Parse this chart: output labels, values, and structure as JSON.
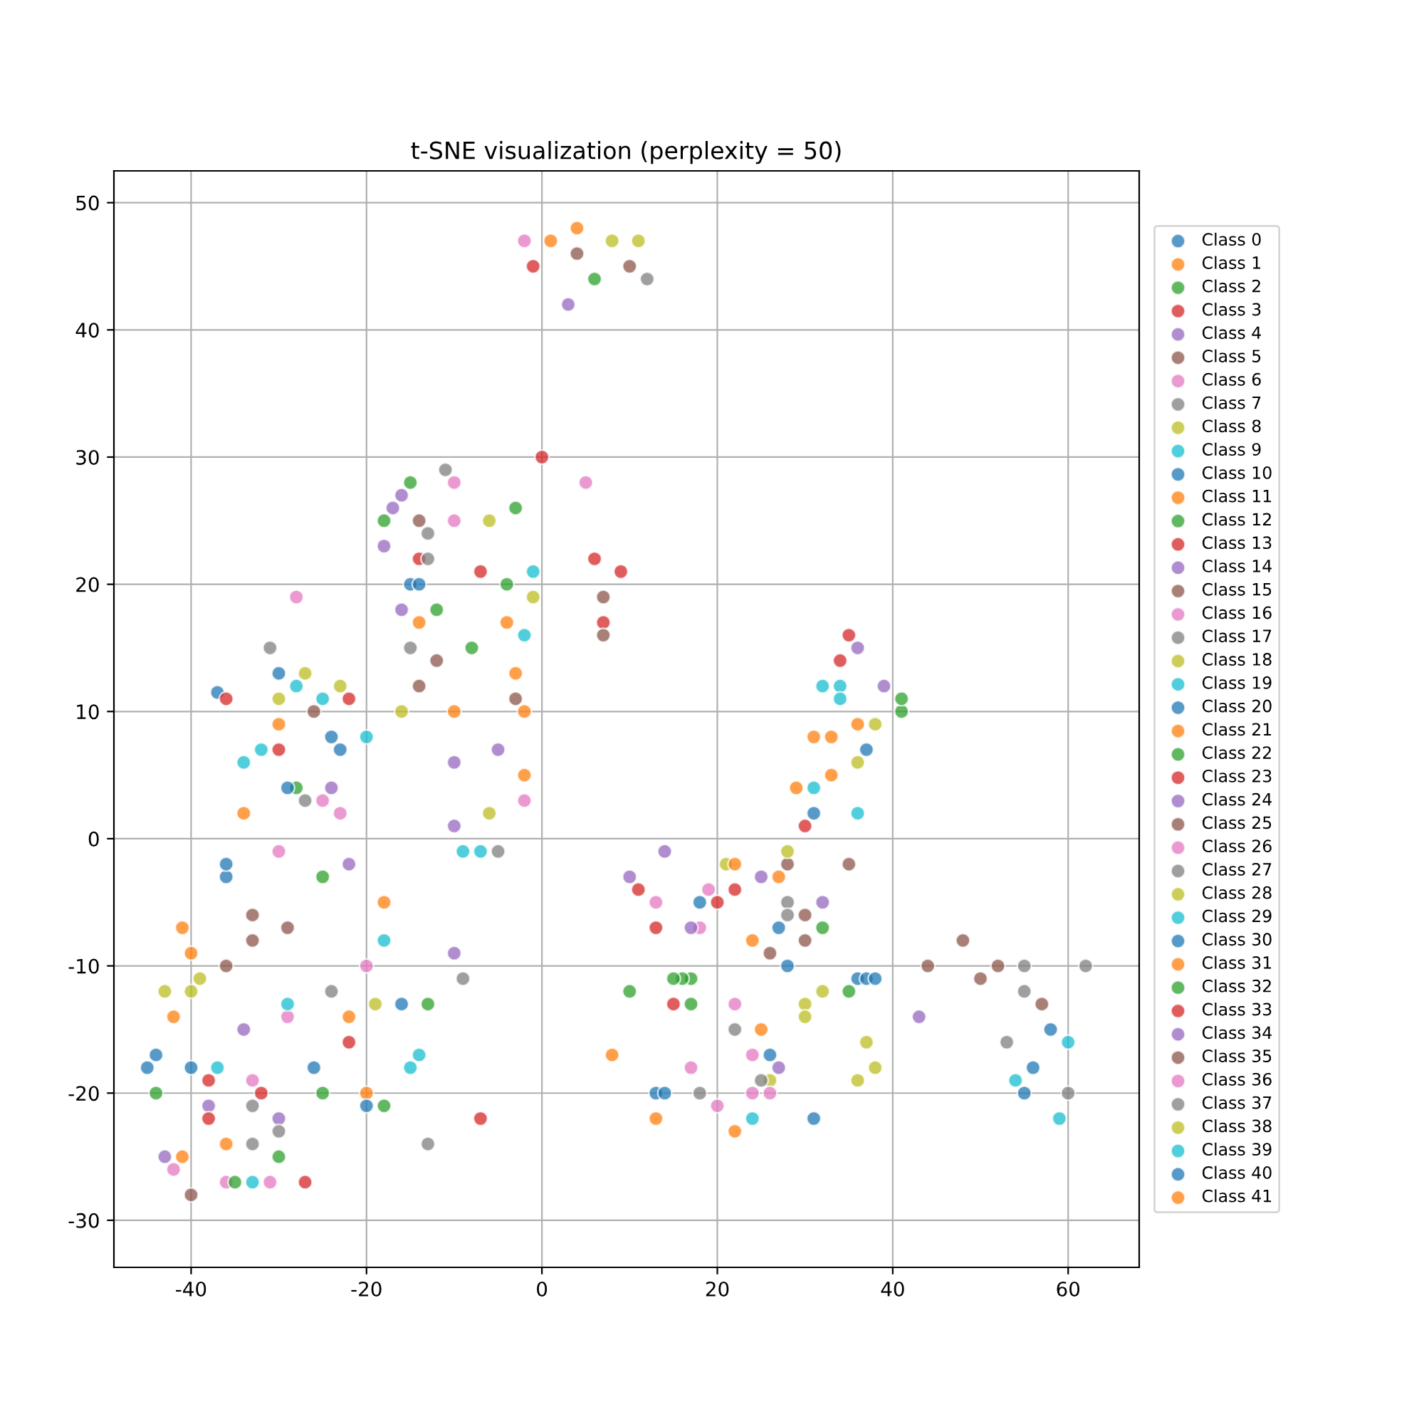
{
  "chart_data": {
    "type": "scatter",
    "title": "t-SNE visualization (perplexity = 50)",
    "xlim": [
      -48.8,
      68.1
    ],
    "ylim": [
      -33.7,
      52.5
    ],
    "xticks": [
      -40,
      -20,
      0,
      20,
      40,
      60
    ],
    "yticks": [
      -30,
      -20,
      -10,
      0,
      10,
      20,
      30,
      40,
      50
    ],
    "grid": true,
    "legend": "right",
    "marker": "circle",
    "series": [
      {
        "name": "Class 0",
        "color": "#1f77b4",
        "x": [
          -37,
          -30,
          -44,
          36,
          28,
          13
        ],
        "values": [
          11.5,
          13,
          -17,
          -11,
          -10,
          -20
        ]
      },
      {
        "name": "Class 1",
        "color": "#ff7f0e",
        "x": [
          1,
          -40,
          -14,
          -2,
          31,
          22
        ],
        "values": [
          47,
          -9,
          17,
          5,
          8,
          -23
        ]
      },
      {
        "name": "Class 2",
        "color": "#2ca02c",
        "x": [
          6,
          -15,
          -4,
          -28,
          17,
          35
        ],
        "values": [
          44,
          28,
          20,
          4,
          -11,
          -12
        ]
      },
      {
        "name": "Class 3",
        "color": "#d62728",
        "x": [
          -1,
          7,
          -14,
          -36,
          20,
          35
        ],
        "values": [
          45,
          17,
          22,
          11,
          -5,
          16
        ]
      },
      {
        "name": "Class 4",
        "color": "#9467bd",
        "x": [
          3,
          -17,
          -10,
          -30,
          27,
          -43
        ],
        "values": [
          42,
          26,
          6,
          -22,
          -18,
          -25
        ]
      },
      {
        "name": "Class 5",
        "color": "#8c564b",
        "x": [
          10,
          7,
          -12,
          -33,
          30,
          52
        ],
        "values": [
          45,
          19,
          14,
          -6,
          -8,
          -10
        ]
      },
      {
        "name": "Class 6",
        "color": "#e377c2",
        "x": [
          -2,
          -25,
          -10,
          13,
          22,
          -36
        ],
        "values": [
          47,
          3,
          25,
          -5,
          -13,
          -27
        ]
      },
      {
        "name": "Class 7",
        "color": "#7f7f7f",
        "x": [
          12,
          -13,
          -24,
          -33,
          18,
          55
        ],
        "values": [
          44,
          24,
          -12,
          -24,
          -20,
          -12
        ]
      },
      {
        "name": "Class 8",
        "color": "#bcbd22",
        "x": [
          8,
          -6,
          -30,
          30,
          26,
          38
        ],
        "values": [
          47,
          25,
          11,
          -13,
          -19,
          9
        ]
      },
      {
        "name": "Class 9",
        "color": "#17becf",
        "x": [
          -1,
          -34,
          -20,
          -15,
          32,
          60
        ],
        "values": [
          21,
          6,
          8,
          -18,
          12,
          -16
        ]
      },
      {
        "name": "Class 10",
        "color": "#1f77b4",
        "x": [
          -36,
          -24,
          -40,
          37,
          14,
          31
        ],
        "values": [
          -3,
          8,
          -18,
          -11,
          -20,
          2
        ]
      },
      {
        "name": "Class 11",
        "color": "#ff7f0e",
        "x": [
          4,
          -10,
          -18,
          -42,
          24,
          33
        ],
        "values": [
          48,
          10,
          -5,
          -14,
          -8,
          5
        ]
      },
      {
        "name": "Class 12",
        "color": "#2ca02c",
        "x": [
          -18,
          -8,
          -30,
          -25,
          16,
          32
        ],
        "values": [
          25,
          15,
          -25,
          -20,
          -11,
          -7
        ]
      },
      {
        "name": "Class 13",
        "color": "#d62728",
        "x": [
          0,
          6,
          -30,
          -22,
          -38,
          11
        ],
        "values": [
          30,
          22,
          7,
          -16,
          -19,
          -4
        ]
      },
      {
        "name": "Class 14",
        "color": "#9467bd",
        "x": [
          -16,
          -5,
          -24,
          -10,
          32,
          36
        ],
        "values": [
          18,
          7,
          4,
          -9,
          -5,
          15
        ]
      },
      {
        "name": "Class 15",
        "color": "#8c564b",
        "x": [
          4,
          -14,
          -26,
          -33,
          35,
          26
        ],
        "values": [
          46,
          12,
          10,
          -8,
          -2,
          -9
        ]
      },
      {
        "name": "Class 16",
        "color": "#e377c2",
        "x": [
          5,
          -10,
          -30,
          19,
          24,
          -33
        ],
        "values": [
          28,
          28,
          -1,
          -4,
          -17,
          -19
        ]
      },
      {
        "name": "Class 17",
        "color": "#7f7f7f",
        "x": [
          -15,
          -27,
          -31,
          -9,
          22,
          28
        ],
        "values": [
          15,
          3,
          15,
          -11,
          -15,
          -5
        ]
      },
      {
        "name": "Class 18",
        "color": "#bcbd22",
        "x": [
          11,
          -27,
          -16,
          -40,
          36,
          30
        ],
        "values": [
          47,
          13,
          10,
          -12,
          -19,
          -14
        ]
      },
      {
        "name": "Class 19",
        "color": "#17becf",
        "x": [
          -32,
          -28,
          -7,
          -18,
          34,
          -33
        ],
        "values": [
          7,
          12,
          -1,
          -8,
          12,
          -27
        ]
      },
      {
        "name": "Class 20",
        "color": "#1f77b4",
        "x": [
          -23,
          -15,
          -26,
          31,
          37,
          56
        ],
        "values": [
          7,
          20,
          -18,
          -22,
          7,
          -18
        ]
      },
      {
        "name": "Class 21",
        "color": "#ff7f0e",
        "x": [
          -3,
          -34,
          -20,
          8,
          29,
          -36
        ],
        "values": [
          13,
          2,
          -20,
          -17,
          4,
          -24
        ]
      },
      {
        "name": "Class 22",
        "color": "#2ca02c",
        "x": [
          -3,
          -25,
          -44,
          15,
          41,
          -13
        ],
        "values": [
          26,
          -3,
          -20,
          -11,
          10,
          -13
        ]
      },
      {
        "name": "Class 23",
        "color": "#d62728",
        "x": [
          9,
          -22,
          -32,
          -7,
          15,
          34
        ],
        "values": [
          21,
          11,
          -20,
          -22,
          -13,
          14
        ]
      },
      {
        "name": "Class 24",
        "color": "#9467bd",
        "x": [
          -18,
          -10,
          -38,
          14,
          25,
          39
        ],
        "values": [
          23,
          1,
          -21,
          -1,
          -3,
          12
        ]
      },
      {
        "name": "Class 25",
        "color": "#8c564b",
        "x": [
          7,
          -29,
          -36,
          30,
          44,
          50
        ],
        "values": [
          16,
          -7,
          -10,
          -6,
          -10,
          -11
        ]
      },
      {
        "name": "Class 26",
        "color": "#e377c2",
        "x": [
          -2,
          -23,
          -29,
          18,
          26,
          -42
        ],
        "values": [
          3,
          2,
          -14,
          -7,
          -20,
          -26
        ]
      },
      {
        "name": "Class 27",
        "color": "#7f7f7f",
        "x": [
          -11,
          -33,
          -13,
          28,
          55,
          60
        ],
        "values": [
          29,
          -21,
          -24,
          -6,
          -10,
          -20
        ]
      },
      {
        "name": "Class 28",
        "color": "#bcbd22",
        "x": [
          -6,
          -23,
          -39,
          38,
          32,
          21
        ],
        "values": [
          2,
          12,
          -11,
          -18,
          -12,
          -2
        ]
      },
      {
        "name": "Class 29",
        "color": "#17becf",
        "x": [
          -2,
          -25,
          -37,
          31,
          36,
          54
        ],
        "values": [
          16,
          11,
          -18,
          4,
          2,
          -19
        ]
      },
      {
        "name": "Class 30",
        "color": "#1f77b4",
        "x": [
          -29,
          -36,
          -16,
          38,
          26,
          58
        ],
        "values": [
          4,
          -2,
          -13,
          -11,
          -17,
          -15
        ]
      },
      {
        "name": "Class 31",
        "color": "#ff7f0e",
        "x": [
          -4,
          -22,
          -41,
          25,
          13,
          36
        ],
        "values": [
          17,
          -14,
          -7,
          -15,
          -22,
          9
        ]
      },
      {
        "name": "Class 32",
        "color": "#2ca02c",
        "x": [
          -12,
          -35,
          -18,
          10,
          17,
          41
        ],
        "values": [
          18,
          -27,
          -21,
          -12,
          -13,
          11
        ]
      },
      {
        "name": "Class 33",
        "color": "#d62728",
        "x": [
          -7,
          -27,
          -38,
          13,
          22,
          30
        ],
        "values": [
          21,
          -27,
          -22,
          -7,
          -4,
          1
        ]
      },
      {
        "name": "Class 34",
        "color": "#9467bd",
        "x": [
          -16,
          -22,
          -34,
          10,
          17,
          43
        ],
        "values": [
          27,
          -2,
          -15,
          -3,
          -7,
          -14
        ]
      },
      {
        "name": "Class 35",
        "color": "#8c564b",
        "x": [
          -14,
          -3,
          -40,
          28,
          48,
          57
        ],
        "values": [
          25,
          11,
          -28,
          -2,
          -8,
          -13
        ]
      },
      {
        "name": "Class 36",
        "color": "#e377c2",
        "x": [
          -28,
          -20,
          -31,
          20,
          24,
          17
        ],
        "values": [
          19,
          -10,
          -27,
          -21,
          -20,
          -18
        ]
      },
      {
        "name": "Class 37",
        "color": "#7f7f7f",
        "x": [
          -13,
          -5,
          -30,
          25,
          53,
          62
        ],
        "values": [
          22,
          -1,
          -23,
          -19,
          -16,
          -10
        ]
      },
      {
        "name": "Class 38",
        "color": "#bcbd22",
        "x": [
          -1,
          -19,
          -43,
          36,
          28,
          37
        ],
        "values": [
          19,
          -13,
          -12,
          6,
          -1,
          -16
        ]
      },
      {
        "name": "Class 39",
        "color": "#17becf",
        "x": [
          -9,
          -29,
          -14,
          24,
          34,
          59
        ],
        "values": [
          -1,
          -13,
          -17,
          -22,
          11,
          -22
        ]
      },
      {
        "name": "Class 40",
        "color": "#1f77b4",
        "x": [
          -14,
          -20,
          -45,
          27,
          18,
          55
        ],
        "values": [
          20,
          -21,
          -18,
          -7,
          -5,
          -20
        ]
      },
      {
        "name": "Class 41",
        "color": "#ff7f0e",
        "x": [
          -2,
          -30,
          -41,
          27,
          22,
          33
        ],
        "values": [
          10,
          9,
          -25,
          -3,
          -2,
          8
        ]
      }
    ]
  }
}
